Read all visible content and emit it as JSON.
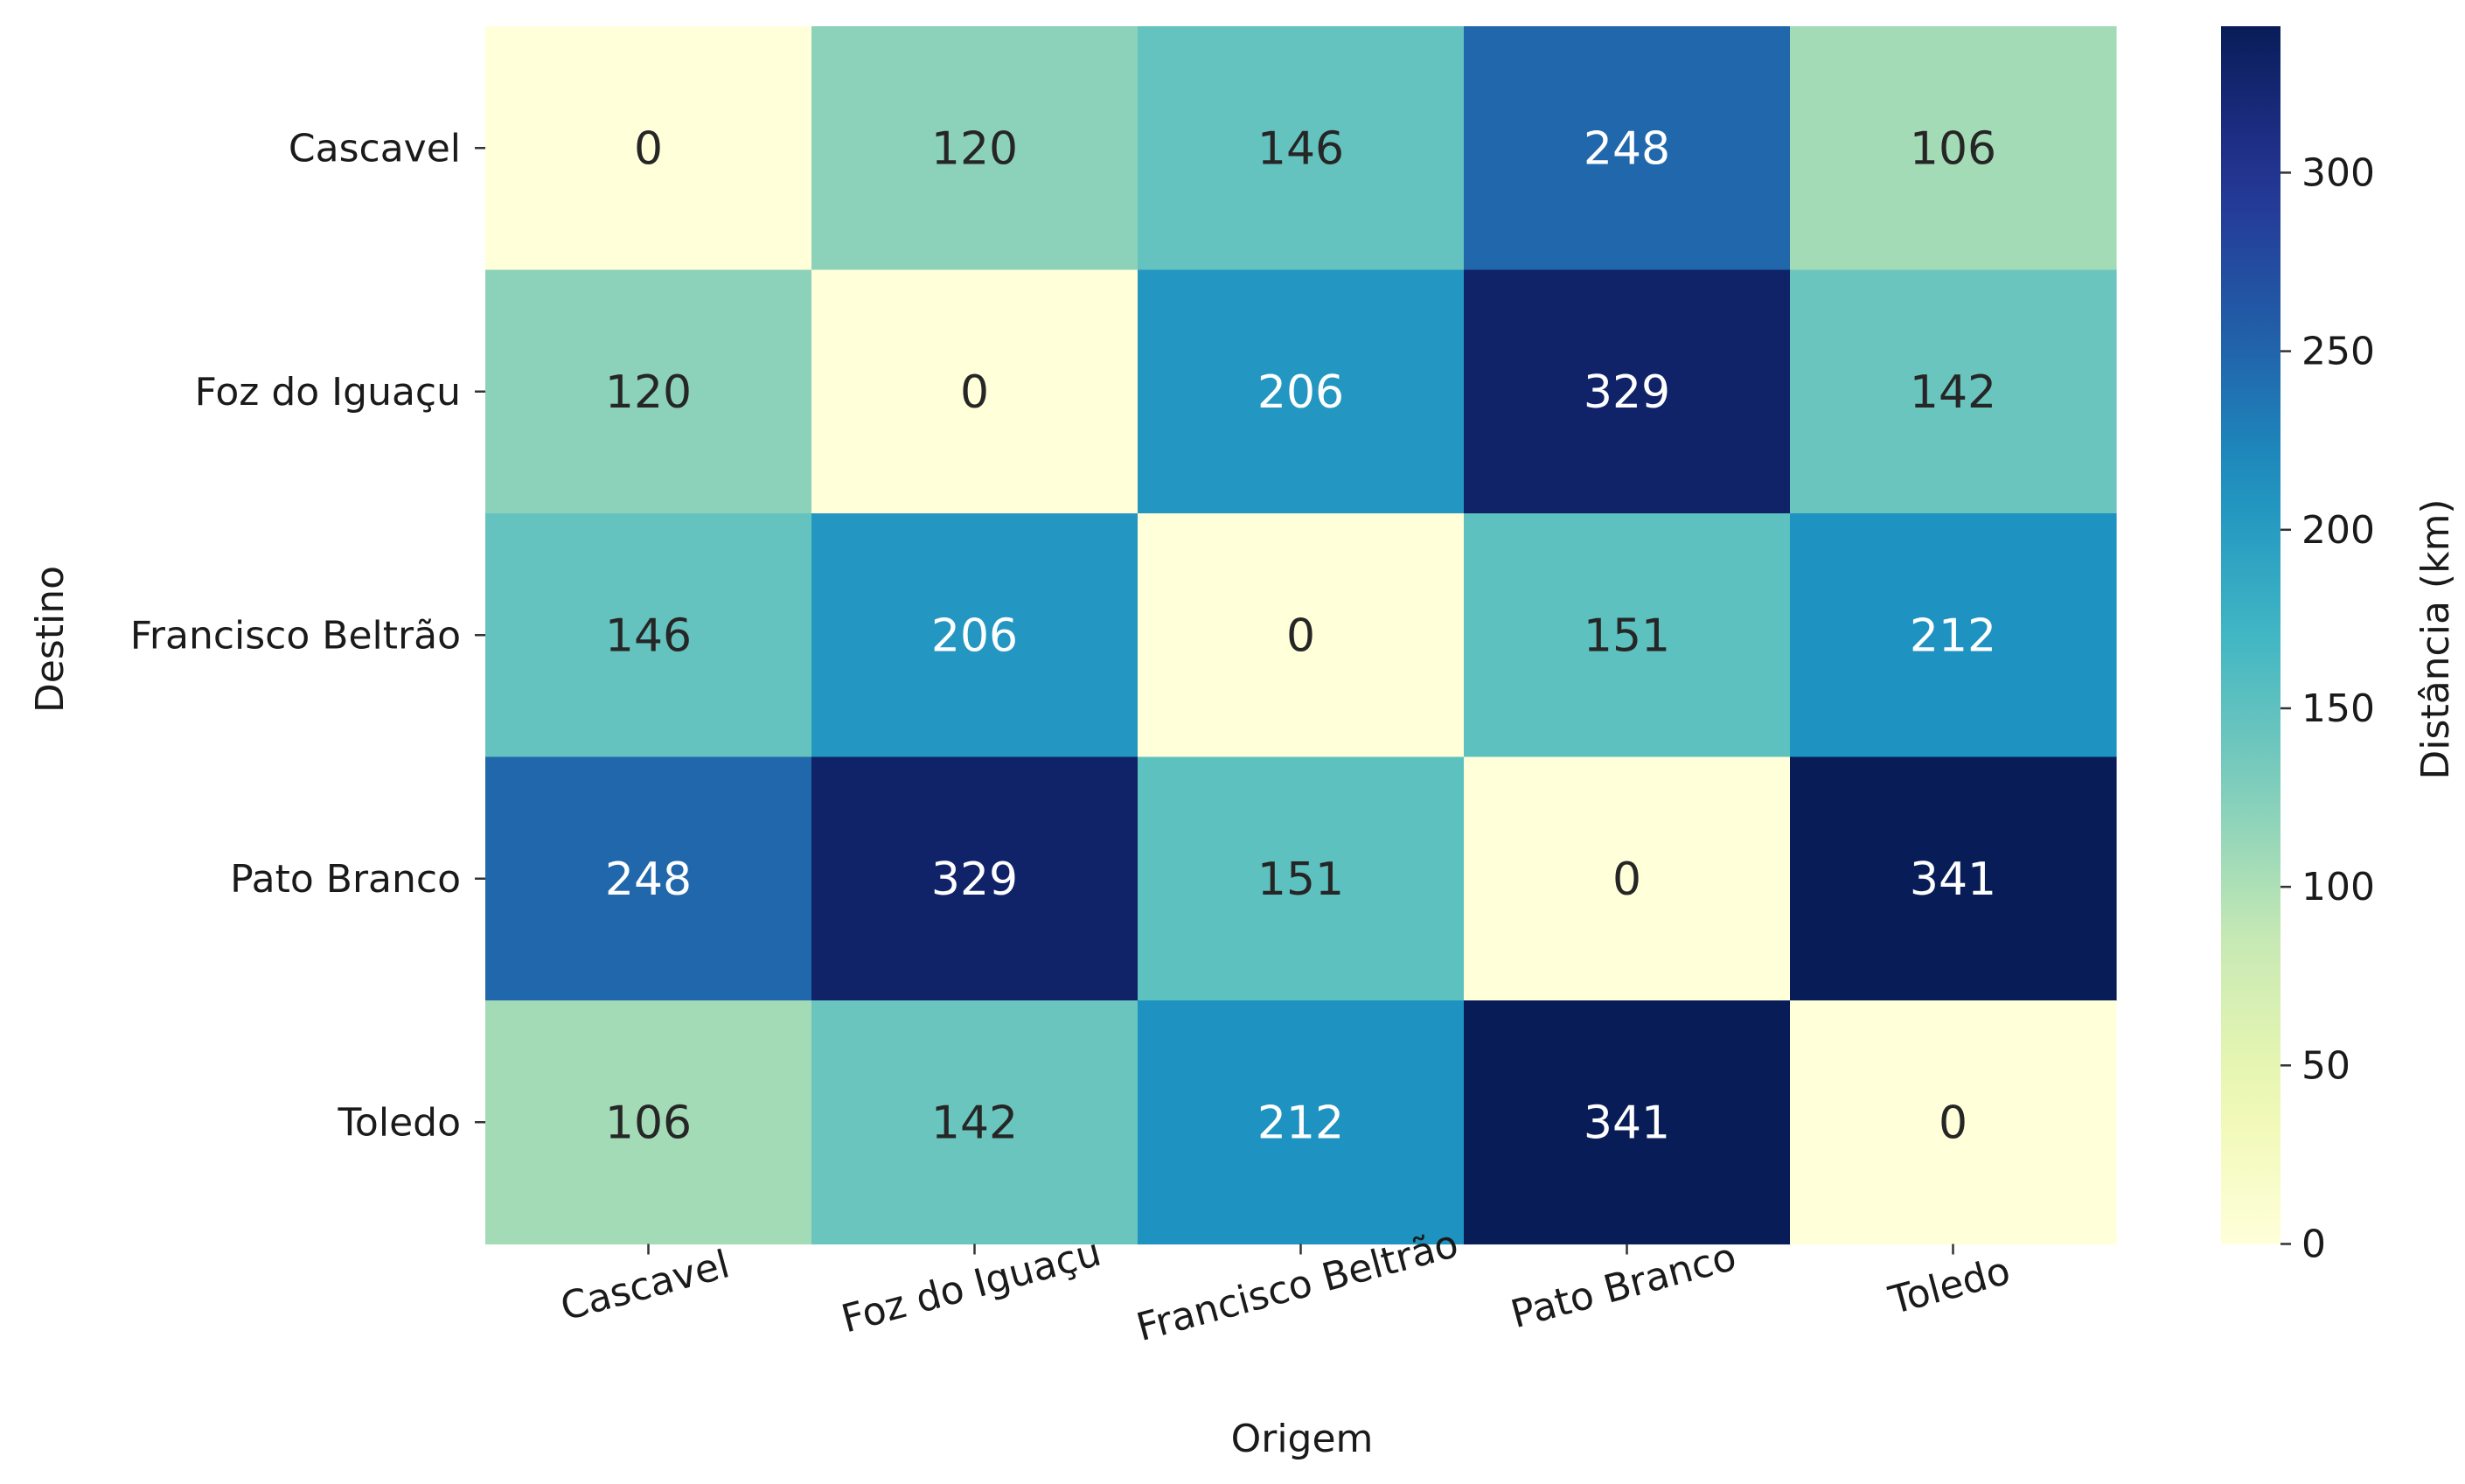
{
  "chart_data": {
    "type": "heatmap",
    "x_categories": [
      "Cascavel",
      "Foz do Iguaçu",
      "Francisco Beltrão",
      "Pato Branco",
      "Toledo"
    ],
    "y_categories": [
      "Cascavel",
      "Foz do Iguaçu",
      "Francisco Beltrão",
      "Pato Branco",
      "Toledo"
    ],
    "values": [
      [
        0,
        120,
        146,
        248,
        106
      ],
      [
        120,
        0,
        206,
        329,
        142
      ],
      [
        146,
        206,
        0,
        151,
        212
      ],
      [
        248,
        329,
        151,
        0,
        341
      ],
      [
        106,
        142,
        212,
        341,
        0
      ]
    ],
    "xlabel": "Origem",
    "ylabel": "Destino",
    "colorbar": {
      "label": "Distância (km)",
      "range": [
        0,
        341
      ],
      "ticks": [
        0,
        50,
        100,
        150,
        200,
        250,
        300
      ],
      "colormap": "YlGnBu"
    },
    "x_tick_rotation_deg": 15,
    "grid": false
  }
}
